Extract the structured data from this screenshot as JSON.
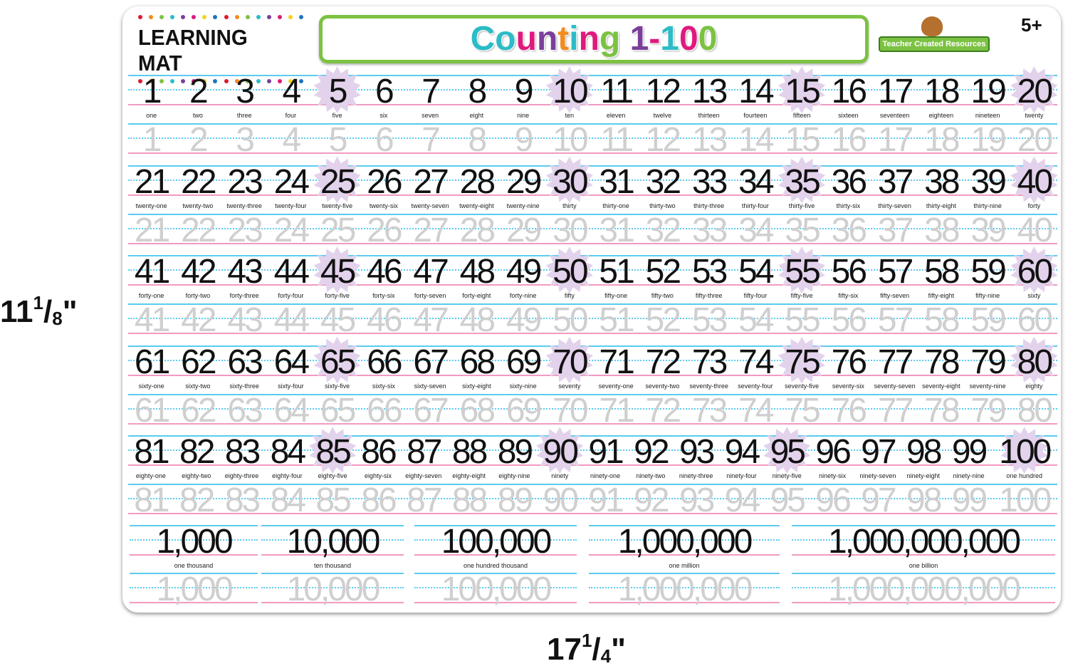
{
  "dimensions": {
    "height_whole": "11",
    "height_num": "1",
    "height_den": "8",
    "width_whole": "17",
    "width_num": "1",
    "width_den": "4"
  },
  "header": {
    "brand": "LEARNING MAT",
    "title_letters": [
      {
        "ch": "C",
        "color": "#2bbcc6"
      },
      {
        "ch": "o",
        "color": "#2bbcc6"
      },
      {
        "ch": "u",
        "color": "#e0197d"
      },
      {
        "ch": "n",
        "color": "#7b3f9a"
      },
      {
        "ch": "t",
        "color": "#f28c1e"
      },
      {
        "ch": "i",
        "color": "#2bbcc6"
      },
      {
        "ch": "n",
        "color": "#e0197d"
      },
      {
        "ch": "g",
        "color": "#7cc242"
      },
      {
        "ch": " ",
        "color": "#000"
      },
      {
        "ch": "1",
        "color": "#7b3f9a"
      },
      {
        "ch": "-",
        "color": "#e0197d"
      },
      {
        "ch": "1",
        "color": "#2bbcc6"
      },
      {
        "ch": "0",
        "color": "#e0197d"
      },
      {
        "ch": "0",
        "color": "#7cc242"
      }
    ],
    "publisher": "Teacher Created Resources",
    "age": "5+",
    "dot_colors": [
      "#e0192c",
      "#f28c1e",
      "#7cc242",
      "#2bbcc6",
      "#7b3f9a",
      "#e0197d",
      "#f7d117",
      "#1d75bc"
    ]
  },
  "colors": {
    "highlight": "#e3d2ec",
    "line_blue": "#5ccbef",
    "line_pink": "#f29ac0",
    "trace": "#cfcfcf"
  },
  "rows": [
    {
      "numbers": [
        "1",
        "2",
        "3",
        "4",
        "5",
        "6",
        "7",
        "8",
        "9",
        "10",
        "11",
        "12",
        "13",
        "14",
        "15",
        "16",
        "17",
        "18",
        "19",
        "20"
      ],
      "words": [
        "one",
        "two",
        "three",
        "four",
        "five",
        "six",
        "seven",
        "eight",
        "nine",
        "ten",
        "eleven",
        "twelve",
        "thirteen",
        "fourteen",
        "fifteen",
        "sixteen",
        "seventeen",
        "eighteen",
        "nineteen",
        "twenty"
      ]
    },
    {
      "numbers": [
        "21",
        "22",
        "23",
        "24",
        "25",
        "26",
        "27",
        "28",
        "29",
        "30",
        "31",
        "32",
        "33",
        "34",
        "35",
        "36",
        "37",
        "38",
        "39",
        "40"
      ],
      "words": [
        "twenty-one",
        "twenty-two",
        "twenty-three",
        "twenty-four",
        "twenty-five",
        "twenty-six",
        "twenty-seven",
        "twenty-eight",
        "twenty-nine",
        "thirty",
        "thirty-one",
        "thirty-two",
        "thirty-three",
        "thirty-four",
        "thirty-five",
        "thirty-six",
        "thirty-seven",
        "thirty-eight",
        "thirty-nine",
        "forty"
      ]
    },
    {
      "numbers": [
        "41",
        "42",
        "43",
        "44",
        "45",
        "46",
        "47",
        "48",
        "49",
        "50",
        "51",
        "52",
        "53",
        "54",
        "55",
        "56",
        "57",
        "58",
        "59",
        "60"
      ],
      "words": [
        "forty-one",
        "forty-two",
        "forty-three",
        "forty-four",
        "forty-five",
        "forty-six",
        "forty-seven",
        "forty-eight",
        "forty-nine",
        "fifty",
        "fifty-one",
        "fifty-two",
        "fifty-three",
        "fifty-four",
        "fifty-five",
        "fifty-six",
        "fifty-seven",
        "fifty-eight",
        "fifty-nine",
        "sixty"
      ]
    },
    {
      "numbers": [
        "61",
        "62",
        "63",
        "64",
        "65",
        "66",
        "67",
        "68",
        "69",
        "70",
        "71",
        "72",
        "73",
        "74",
        "75",
        "76",
        "77",
        "78",
        "79",
        "80"
      ],
      "words": [
        "sixty-one",
        "sixty-two",
        "sixty-three",
        "sixty-four",
        "sixty-five",
        "sixty-six",
        "sixty-seven",
        "sixty-eight",
        "sixty-nine",
        "seventy",
        "seventy-one",
        "seventy-two",
        "seventy-three",
        "seventy-four",
        "seventy-five",
        "seventy-six",
        "seventy-seven",
        "seventy-eight",
        "seventy-nine",
        "eighty"
      ]
    },
    {
      "numbers": [
        "81",
        "82",
        "83",
        "84",
        "85",
        "86",
        "87",
        "88",
        "89",
        "90",
        "91",
        "92",
        "93",
        "94",
        "95",
        "96",
        "97",
        "98",
        "99",
        "100"
      ],
      "words": [
        "eighty-one",
        "eighty-two",
        "eighty-three",
        "eighty-four",
        "eighty-five",
        "eighty-six",
        "eighty-seven",
        "eighty-eight",
        "eighty-nine",
        "ninety",
        "ninety-one",
        "ninety-two",
        "ninety-three",
        "ninety-four",
        "ninety-five",
        "ninety-six",
        "ninety-seven",
        "ninety-eight",
        "ninety-nine",
        "one hundred"
      ]
    }
  ],
  "large_numbers": [
    {
      "number": "1,000",
      "word": "one thousand"
    },
    {
      "number": "10,000",
      "word": "ten thousand"
    },
    {
      "number": "100,000",
      "word": "one hundred thousand"
    },
    {
      "number": "1,000,000",
      "word": "one million"
    },
    {
      "number": "1,000,000,000",
      "word": "one billion"
    }
  ]
}
